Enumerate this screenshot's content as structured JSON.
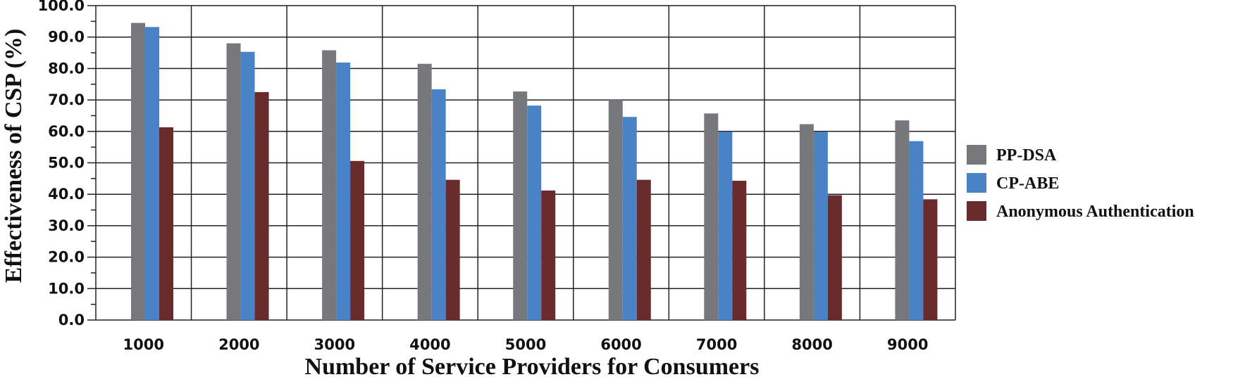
{
  "chart_data": {
    "type": "bar",
    "title": "",
    "xlabel": "Number of Service Providers  for Consumers",
    "ylabel": "Effectiveness of CSP (%)",
    "categories": [
      "1000",
      "2000",
      "3000",
      "4000",
      "5000",
      "6000",
      "7000",
      "8000",
      "9000"
    ],
    "ylim": [
      0,
      100
    ],
    "yticks": [
      "0.0",
      "10.0",
      "20.0",
      "30.0",
      "40.0",
      "50.0",
      "60.0",
      "70.0",
      "80.0",
      "90.0",
      "100.0"
    ],
    "grid": true,
    "legend_position": "right",
    "series": [
      {
        "name": "PP-DSA",
        "color": "#77787b",
        "values": [
          94.5,
          88.0,
          85.8,
          81.5,
          72.7,
          70.0,
          65.7,
          62.3,
          63.5
        ]
      },
      {
        "name": "CP-ABE",
        "color": "#4a82c6",
        "values": [
          93.2,
          85.3,
          81.9,
          73.4,
          68.2,
          64.6,
          59.9,
          59.8,
          56.9
        ]
      },
      {
        "name": "Anonymous Authentication",
        "color": "#6a2b2d",
        "values": [
          61.3,
          72.5,
          50.6,
          44.6,
          41.2,
          44.6,
          44.3,
          39.7,
          38.4
        ]
      }
    ]
  }
}
